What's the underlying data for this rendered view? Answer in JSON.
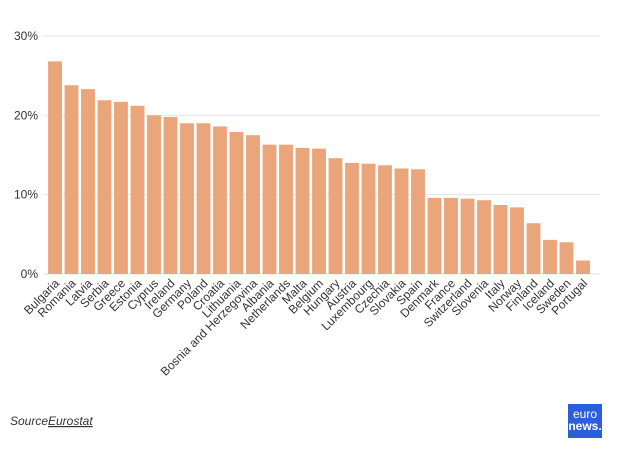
{
  "chart_data": {
    "type": "bar",
    "categories": [
      "Bulgaria",
      "Romania",
      "Latvia",
      "Serbia",
      "Greece",
      "Estonia",
      "Cyprus",
      "Ireland",
      "Germany",
      "Poland",
      "Croatia",
      "Lithuania",
      "Bosnia and Herzegovina",
      "Albania",
      "Netherlands",
      "Malta",
      "Belgium",
      "Hungary",
      "Austria",
      "Luxembourg",
      "Czechia",
      "Slovakia",
      "Spain",
      "Denmark",
      "France",
      "Switzerland",
      "Slovenia",
      "Italy",
      "Norway",
      "Finland",
      "Iceland",
      "Sweden",
      "Portugal"
    ],
    "values": [
      26.8,
      23.8,
      23.3,
      21.9,
      21.7,
      21.2,
      20.0,
      19.8,
      19.0,
      19.0,
      18.6,
      17.9,
      17.5,
      16.3,
      16.3,
      15.9,
      15.8,
      14.6,
      14.0,
      13.9,
      13.7,
      13.3,
      13.2,
      9.6,
      9.6,
      9.5,
      9.3,
      8.7,
      8.4,
      6.4,
      4.3,
      4.0,
      1.7
    ],
    "color": "#eba57b",
    "ylim": [
      0,
      30
    ],
    "yticks": [
      {
        "value": 0,
        "label": "0%"
      },
      {
        "value": 10,
        "label": "10%"
      },
      {
        "value": 20,
        "label": "20%"
      },
      {
        "value": 30,
        "label": "30%"
      }
    ],
    "grid": true,
    "source_label": "Source:",
    "source": "Eurostat"
  },
  "logo": {
    "line1": "euro",
    "line2": "news."
  }
}
